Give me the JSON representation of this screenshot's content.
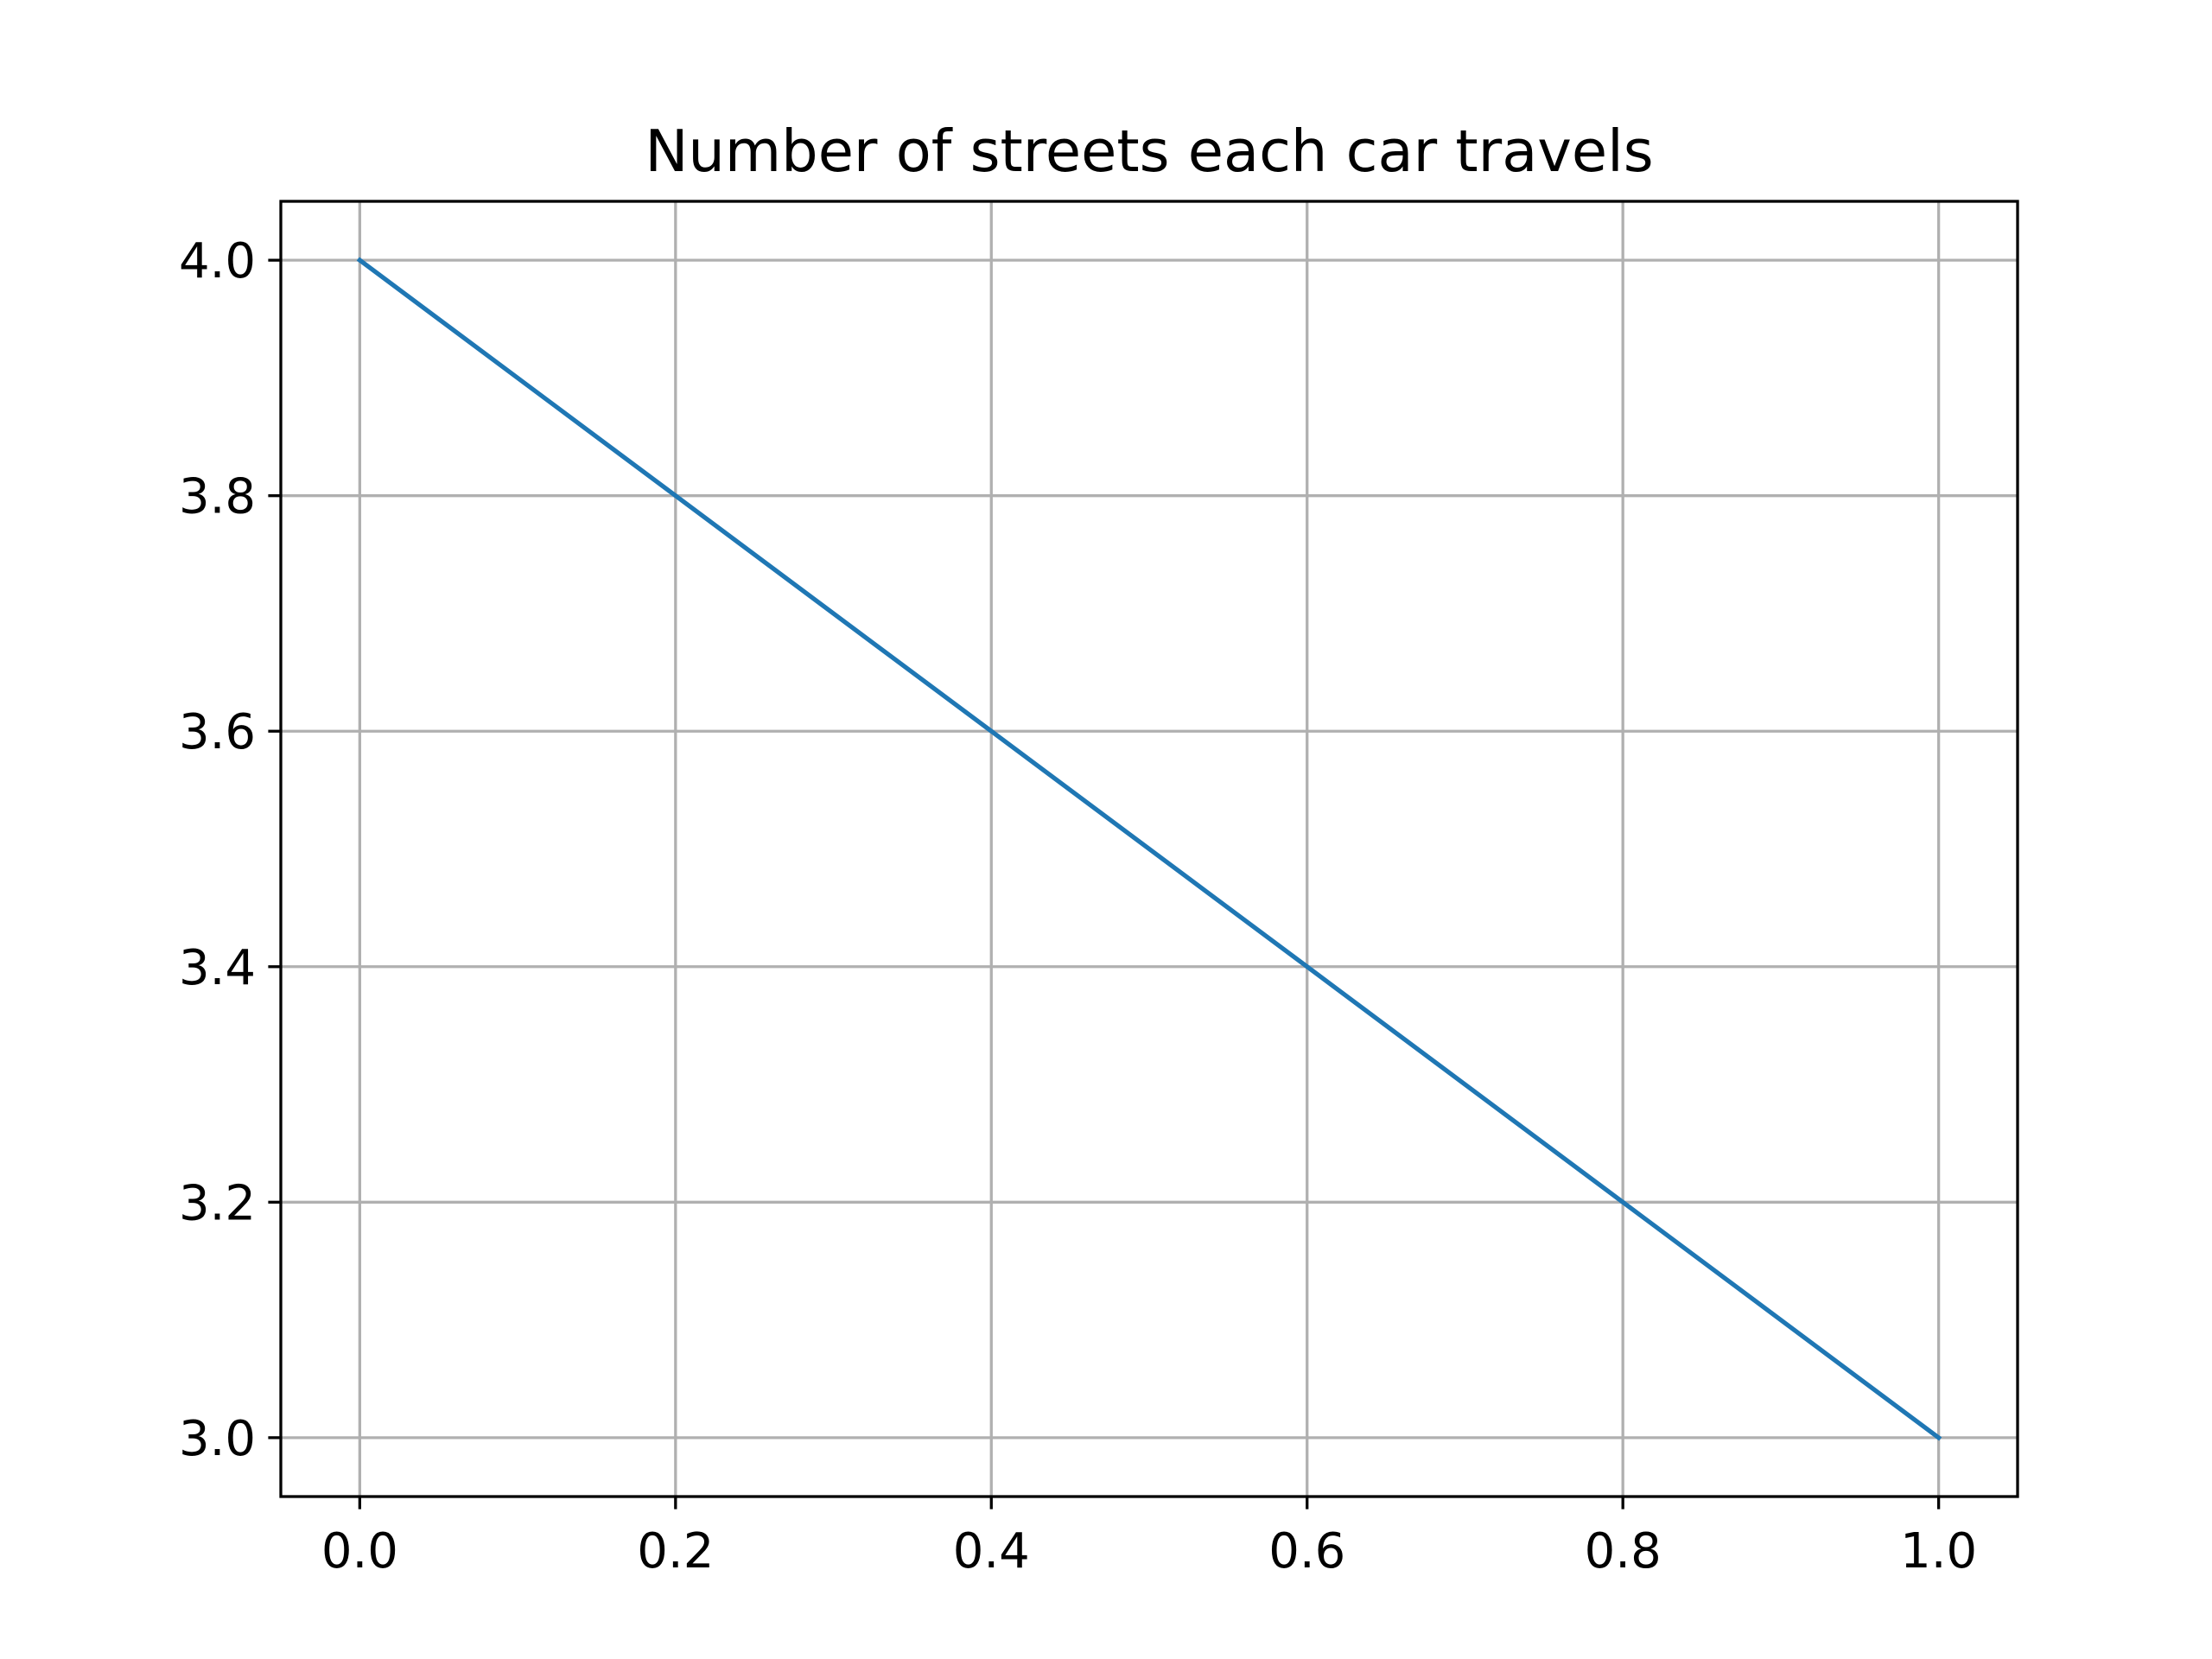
{
  "chart_data": {
    "type": "line",
    "title": "Number of streets each car travels",
    "xlabel": "",
    "ylabel": "",
    "x": [
      0.0,
      1.0
    ],
    "series": [
      {
        "values": [
          4.0,
          3.0
        ],
        "color": "#1f77b4"
      }
    ],
    "xlim": [
      -0.05,
      1.05
    ],
    "ylim": [
      2.95,
      4.05
    ],
    "xticks": [
      0.0,
      0.2,
      0.4,
      0.6,
      0.8,
      1.0
    ],
    "xtick_labels": [
      "0.0",
      "0.2",
      "0.4",
      "0.6",
      "0.8",
      "1.0"
    ],
    "yticks": [
      3.0,
      3.2,
      3.4,
      3.6,
      3.8,
      4.0
    ],
    "ytick_labels": [
      "3.0",
      "3.2",
      "3.4",
      "3.6",
      "3.8",
      "4.0"
    ],
    "grid": true,
    "grid_color": "#b0b0b0",
    "axes_color": "#000000"
  }
}
